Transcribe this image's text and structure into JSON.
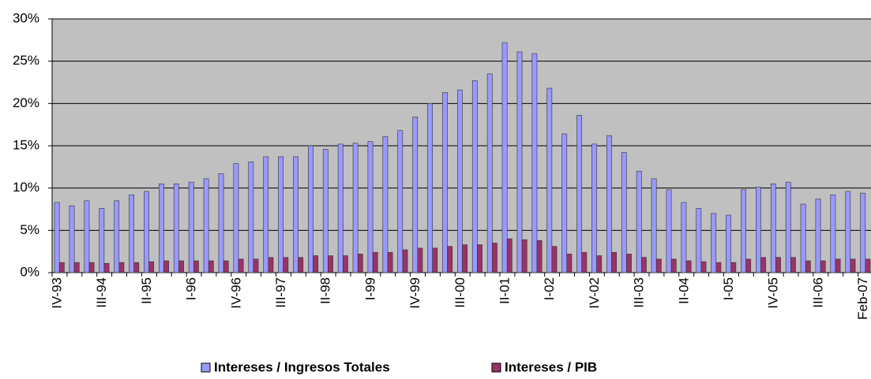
{
  "chart_data": {
    "type": "bar",
    "categories": [
      "IV-93",
      null,
      null,
      "III-94",
      null,
      null,
      "II-95",
      null,
      null,
      "I-96",
      null,
      null,
      "IV-96",
      null,
      null,
      "III-97",
      null,
      null,
      "II-98",
      null,
      null,
      "I-99",
      null,
      null,
      "IV-99",
      null,
      null,
      "III-00",
      null,
      null,
      "II-01",
      null,
      null,
      "I-02",
      null,
      null,
      "IV-02",
      null,
      null,
      "III-03",
      null,
      null,
      "II-04",
      null,
      null,
      "I-05",
      null,
      null,
      "IV-05",
      null,
      null,
      "III-06",
      null,
      null,
      "Feb-07"
    ],
    "series": [
      {
        "name": "Intereses / Ingresos Totales",
        "color": "#9999ff",
        "values": [
          8.3,
          7.9,
          8.5,
          7.6,
          8.5,
          9.2,
          9.6,
          10.5,
          10.5,
          10.7,
          11.1,
          11.7,
          12.9,
          13.1,
          13.7,
          13.7,
          13.7,
          15.0,
          14.6,
          15.2,
          15.3,
          15.5,
          16.1,
          16.8,
          18.4,
          20.0,
          21.3,
          21.6,
          22.7,
          23.5,
          27.2,
          26.1,
          25.9,
          21.8,
          16.4,
          18.6,
          15.2,
          16.2,
          14.2,
          12.0,
          11.1,
          9.8,
          8.3,
          7.6,
          7.0,
          6.8,
          9.8,
          10.1,
          10.5,
          10.7,
          8.1,
          8.7,
          9.2,
          9.6,
          9.4
        ]
      },
      {
        "name": "Intereses / PIB",
        "color": "#993366",
        "values": [
          1.2,
          1.2,
          1.2,
          1.1,
          1.2,
          1.2,
          1.3,
          1.4,
          1.4,
          1.4,
          1.4,
          1.4,
          1.6,
          1.6,
          1.8,
          1.8,
          1.8,
          2.0,
          2.0,
          2.0,
          2.2,
          2.4,
          2.4,
          2.7,
          2.9,
          2.9,
          3.1,
          3.3,
          3.3,
          3.5,
          4.0,
          3.9,
          3.8,
          3.1,
          2.2,
          2.4,
          2.0,
          2.4,
          2.2,
          1.8,
          1.6,
          1.6,
          1.4,
          1.3,
          1.2,
          1.2,
          1.6,
          1.8,
          1.8,
          1.8,
          1.4,
          1.4,
          1.6,
          1.6,
          1.6
        ]
      }
    ],
    "ylim": [
      0,
      30
    ],
    "yticks": [
      {
        "value": 0,
        "label": "0%"
      },
      {
        "value": 5,
        "label": "5%"
      },
      {
        "value": 10,
        "label": "10%"
      },
      {
        "value": 15,
        "label": "15%"
      },
      {
        "value": 20,
        "label": "20%"
      },
      {
        "value": 25,
        "label": "25%"
      },
      {
        "value": 30,
        "label": "30%"
      }
    ],
    "grid": true,
    "plot_background": "#c0c0c0",
    "legend": "bottom"
  }
}
